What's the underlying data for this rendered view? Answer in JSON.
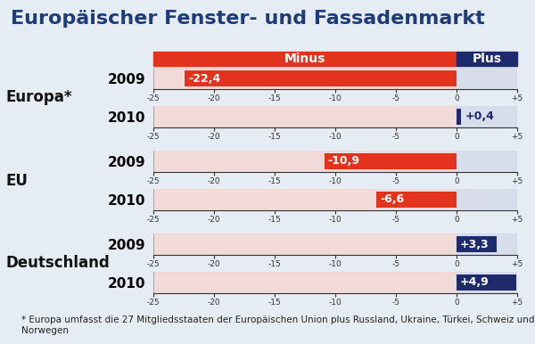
{
  "title": "Europäischer Fenster- und Fassadenmarkt",
  "header": {
    "minus": "Minus",
    "plus": "Plus"
  },
  "footnote": "* Europa umfasst die 27 Mitgliedsstaaten der Europäischen Union plus Russland, Ukraine, Türkei, Schweiz und Norwegen",
  "chart_data": [
    {
      "type": "bar",
      "orientation": "horizontal",
      "title": "Europa*",
      "categories": [
        "2009",
        "2010"
      ],
      "values": [
        -22.4,
        0.4
      ],
      "value_labels": [
        "-22,4",
        "+0,4"
      ],
      "data_labels": true,
      "colors": [
        "#e2331f",
        "#1d2a6e"
      ],
      "xlim": [
        -25,
        5
      ],
      "xticks": [
        -25,
        -20,
        -15,
        -10,
        -5,
        0,
        {
          "value": 5,
          "label": "+5"
        }
      ]
    },
    {
      "type": "bar",
      "orientation": "horizontal",
      "title": "EU",
      "categories": [
        "2009",
        "2010"
      ],
      "values": [
        -10.9,
        -6.6
      ],
      "value_labels": [
        "-10,9",
        "-6,6"
      ],
      "data_labels": true,
      "colors": [
        "#e2331f",
        "#e2331f"
      ],
      "xlim": [
        -25,
        5
      ],
      "xticks": [
        -25,
        -20,
        -15,
        -10,
        -5,
        0,
        {
          "value": 5,
          "label": "+5"
        }
      ]
    },
    {
      "type": "bar",
      "orientation": "horizontal",
      "title": "Deutschland",
      "categories": [
        "2009",
        "2010"
      ],
      "values": [
        3.3,
        4.9
      ],
      "value_labels": [
        "+3,3",
        "+4,9"
      ],
      "data_labels": true,
      "colors": [
        "#1d2a6e",
        "#1d2a6e"
      ],
      "xlim": [
        -25,
        5
      ],
      "xticks": [
        -25,
        -20,
        -15,
        -10,
        -5,
        0,
        {
          "value": 5,
          "label": "+5"
        }
      ]
    }
  ]
}
